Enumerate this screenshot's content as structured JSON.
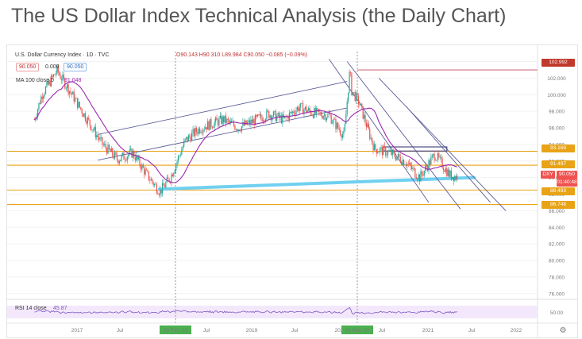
{
  "page": {
    "title": "The US Dollar Index Technical Analysis (the Daily Chart)"
  },
  "chart_header": {
    "symbol": "U.S. Dollar Currency Index · 1D · TVC",
    "ohlc": "O90.143 H90.310 L89.984 C90.050 −0.085 (−0.09%)",
    "price_box_1": "90.050",
    "change_text": "0.000",
    "price_box_2": "90.050",
    "ma_label": "MA 100 close 0",
    "ma_value": "91.048",
    "rsi_label": "RSI 14 close",
    "rsi_value": "45.87"
  },
  "price_labels": {
    "high": "102.992",
    "level_1": "93.169",
    "level_2": "91.497",
    "symbol_tag": "DXY",
    "last_price": "90.050",
    "countdown": "01:40:48",
    "level_3": "88.493",
    "level_4": "86.748"
  },
  "colors": {
    "up_candle": "#26a69a",
    "down_candle": "#ef5350",
    "moving_average": "#9c27b0",
    "channel_lines": "#5c5d98",
    "support_levels": "#e8a317",
    "trendline": "#70d0f0",
    "high_line": "#d07080",
    "rsi_line": "#7e57c2"
  },
  "chart_data": {
    "type": "candlestick",
    "series": [
      {
        "name": "U.S. Dollar Currency Index · 1D · TVC",
        "points": [
          [
            "2016-10",
            97.0
          ],
          [
            "2016-11",
            100.0
          ],
          [
            "2017-01",
            102.9
          ],
          [
            "2017-03",
            100.0
          ],
          [
            "2017-05",
            97.0
          ],
          [
            "2017-07",
            94.0
          ],
          [
            "2017-09",
            92.2
          ],
          [
            "2017-11",
            93.0
          ],
          [
            "2018-01",
            90.2
          ],
          [
            "2018-02-20",
            88.3
          ],
          [
            "2018-04",
            90.0
          ],
          [
            "2018-06",
            94.5
          ],
          [
            "2018-08",
            96.0
          ],
          [
            "2018-11",
            97.0
          ],
          [
            "2019-01",
            96.0
          ],
          [
            "2019-03",
            96.8
          ],
          [
            "2019-05",
            97.7
          ],
          [
            "2019-07",
            97.0
          ],
          [
            "2019-09",
            98.5
          ],
          [
            "2019-11",
            97.8
          ],
          [
            "2020-01",
            97.5
          ],
          [
            "2020-03",
            95.0
          ],
          [
            "2020-03-24",
            102.99
          ],
          [
            "2020-04",
            100.5
          ],
          [
            "2020-05",
            99.0
          ],
          [
            "2020-07",
            93.5
          ],
          [
            "2020-09",
            93.0
          ],
          [
            "2020-11",
            92.0
          ],
          [
            "2021-01",
            90.0
          ],
          [
            "2021-03",
            92.8
          ],
          [
            "2021-05",
            90.3
          ],
          [
            "2021-06",
            90.05
          ]
        ]
      },
      {
        "name": "MA 100 close 0",
        "last_value": 91.048
      },
      {
        "name": "RSI 14 close",
        "last_value": 45.87
      }
    ],
    "horizontal_levels": [
      102.992,
      93.169,
      91.497,
      88.493,
      86.748
    ],
    "y_ticks": [
      76.0,
      78.0,
      80.0,
      82.0,
      84.0,
      86.0,
      88.0,
      90.0,
      92.0,
      94.0,
      96.0,
      98.0,
      100.0,
      102.0,
      104.0
    ],
    "rsi_ticks": [
      50.0
    ],
    "x_ticks": [
      "2017",
      "Jul",
      "20 Feb '18",
      "Jul",
      "2019",
      "Jul",
      "202",
      "24 Mar '20",
      "Jul",
      "2021",
      "Jul",
      "2022"
    ],
    "ylim": [
      75.5,
      105.2
    ],
    "grid": true,
    "legend": "top-left"
  }
}
